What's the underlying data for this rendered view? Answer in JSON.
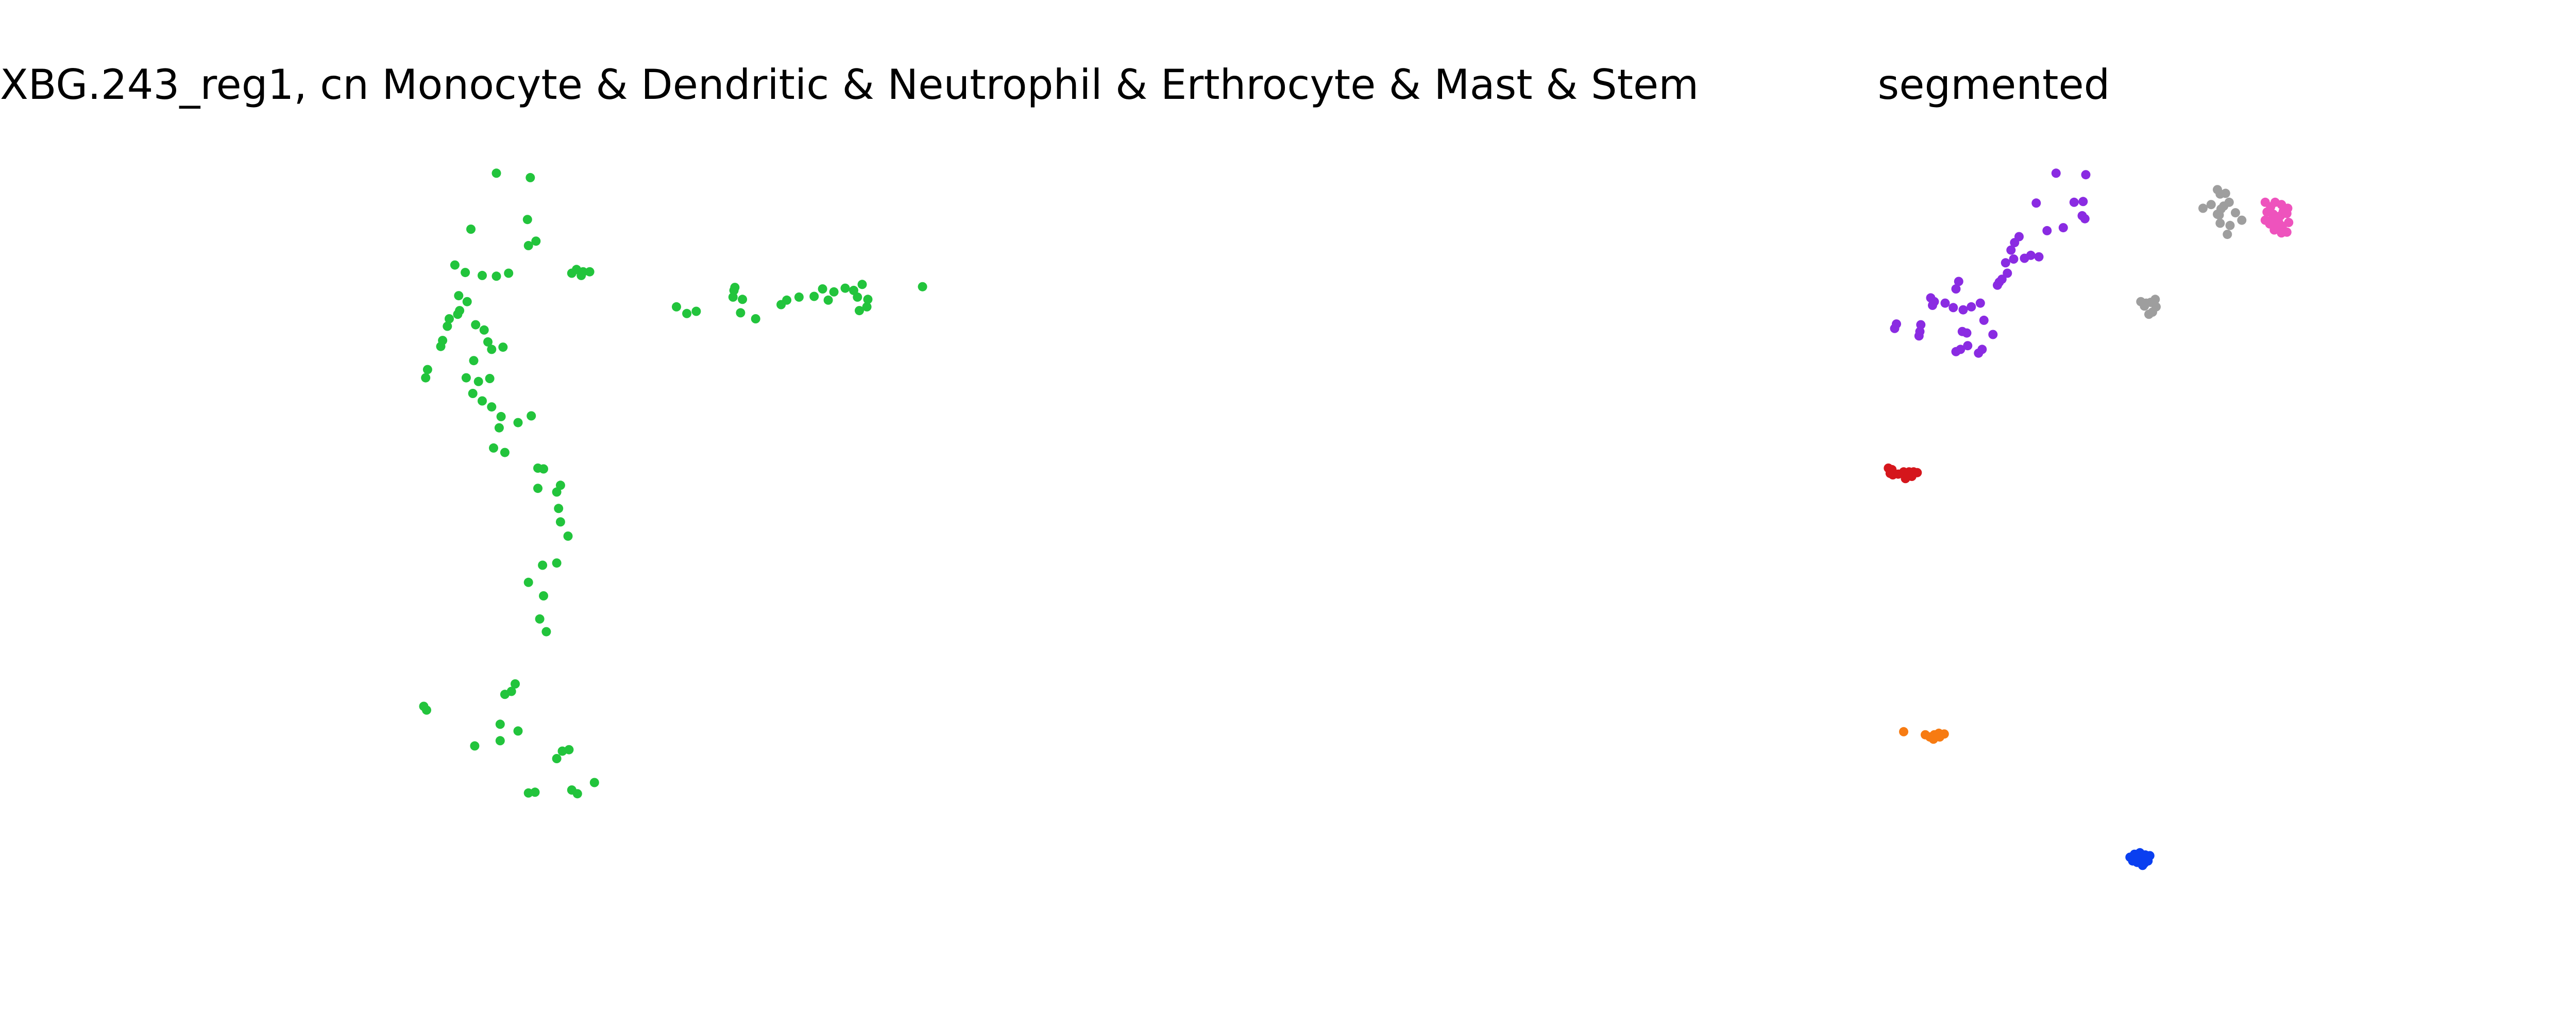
{
  "figure": {
    "background": "#ffffff"
  },
  "chart_data": [
    {
      "type": "scatter",
      "title": "XBG.243_reg1, cn Monocyte & Dendritic & Neutrophil & Erthrocyte & Mast & Stem",
      "xlabel": "",
      "ylabel": "",
      "axes_visible": false,
      "grid": false,
      "xlim": [
        0,
        100
      ],
      "ylim": [
        0,
        100
      ],
      "series": [
        {
          "color": "#22c43c",
          "points": [
            [
              21.5,
              97.5
            ],
            [
              25.1,
              96.9
            ],
            [
              18.8,
              90.0
            ],
            [
              24.8,
              91.3
            ],
            [
              25.7,
              88.4
            ],
            [
              24.9,
              87.8
            ],
            [
              30.0,
              84.6
            ],
            [
              30.7,
              84.3
            ],
            [
              31.4,
              84.3
            ],
            [
              29.5,
              84.1
            ],
            [
              30.5,
              83.8
            ],
            [
              17.1,
              85.2
            ],
            [
              18.2,
              84.2
            ],
            [
              20.0,
              83.8
            ],
            [
              21.5,
              83.7
            ],
            [
              22.8,
              84.1
            ],
            [
              17.5,
              81.1
            ],
            [
              18.4,
              80.3
            ],
            [
              17.6,
              79.1
            ],
            [
              17.4,
              78.6
            ],
            [
              16.5,
              78.0
            ],
            [
              16.3,
              77.0
            ],
            [
              15.8,
              75.1
            ],
            [
              15.6,
              74.3
            ],
            [
              14.2,
              71.2
            ],
            [
              14.0,
              70.1
            ],
            [
              19.3,
              77.2
            ],
            [
              20.2,
              76.5
            ],
            [
              20.6,
              74.9
            ],
            [
              21.0,
              73.9
            ],
            [
              22.2,
              74.2
            ],
            [
              19.1,
              72.4
            ],
            [
              18.3,
              70.1
            ],
            [
              19.6,
              69.6
            ],
            [
              20.8,
              70.0
            ],
            [
              19.0,
              68.0
            ],
            [
              20.0,
              67.0
            ],
            [
              21.0,
              66.2
            ],
            [
              22.0,
              64.9
            ],
            [
              21.8,
              63.4
            ],
            [
              25.2,
              65.0
            ],
            [
              23.8,
              64.1
            ],
            [
              22.4,
              60.1
            ],
            [
              21.2,
              60.7
            ],
            [
              25.9,
              58.0
            ],
            [
              26.5,
              57.9
            ],
            [
              25.9,
              55.3
            ],
            [
              28.3,
              55.7
            ],
            [
              27.9,
              54.8
            ],
            [
              28.1,
              52.6
            ],
            [
              28.3,
              50.8
            ],
            [
              29.1,
              48.9
            ],
            [
              26.4,
              45.0
            ],
            [
              27.9,
              45.3
            ],
            [
              24.9,
              42.7
            ],
            [
              26.1,
              37.8
            ],
            [
              26.5,
              40.9
            ],
            [
              26.8,
              36.1
            ],
            [
              23.5,
              29.1
            ],
            [
              23.1,
              28.1
            ],
            [
              22.4,
              27.7
            ],
            [
              19.2,
              20.8
            ],
            [
              21.9,
              21.5
            ],
            [
              28.5,
              20.1
            ],
            [
              29.2,
              20.3
            ],
            [
              27.9,
              19.1
            ],
            [
              31.9,
              15.9
            ],
            [
              29.5,
              14.9
            ],
            [
              30.1,
              14.4
            ],
            [
              24.9,
              14.5
            ],
            [
              25.6,
              14.6
            ],
            [
              13.8,
              26.1
            ],
            [
              14.1,
              25.6
            ],
            [
              21.9,
              23.7
            ],
            [
              23.8,
              22.8
            ],
            [
              46.8,
              82.2
            ],
            [
              46.7,
              81.8
            ],
            [
              47.6,
              80.6
            ],
            [
              46.6,
              80.9
            ],
            [
              47.4,
              78.8
            ],
            [
              40.6,
              79.6
            ],
            [
              41.7,
              78.7
            ],
            [
              42.7,
              79.0
            ],
            [
              49.0,
              78.0
            ],
            [
              51.7,
              79.9
            ],
            [
              52.3,
              80.5
            ],
            [
              53.6,
              80.9
            ],
            [
              55.2,
              81.0
            ],
            [
              56.1,
              82.0
            ],
            [
              56.7,
              80.5
            ],
            [
              57.3,
              81.6
            ],
            [
              58.5,
              82.1
            ],
            [
              59.4,
              81.8
            ],
            [
              60.3,
              82.6
            ],
            [
              60.9,
              80.6
            ],
            [
              60.0,
              79.1
            ],
            [
              59.8,
              80.9
            ],
            [
              60.8,
              79.6
            ],
            [
              66.7,
              82.3
            ]
          ]
        }
      ]
    },
    {
      "type": "scatter",
      "title": "segmented",
      "xlabel": "",
      "ylabel": "",
      "axes_visible": false,
      "grid": false,
      "xlim": [
        0,
        100
      ],
      "ylim": [
        0,
        100
      ],
      "series": [
        {
          "color": "#8a2be2",
          "points": [
            [
              70.9,
              97.5
            ],
            [
              74.2,
              97.3
            ],
            [
              68.7,
              93.5
            ],
            [
              72.9,
              93.6
            ],
            [
              73.9,
              93.7
            ],
            [
              73.8,
              91.8
            ],
            [
              74.1,
              91.4
            ],
            [
              71.7,
              90.2
            ],
            [
              69.9,
              89.8
            ],
            [
              66.8,
              89.0
            ],
            [
              66.3,
              88.2
            ],
            [
              65.9,
              87.2
            ],
            [
              66.2,
              86.0
            ],
            [
              65.3,
              85.5
            ],
            [
              67.4,
              86.1
            ],
            [
              68.1,
              86.5
            ],
            [
              69.0,
              86.3
            ],
            [
              65.5,
              84.1
            ],
            [
              64.9,
              83.3
            ],
            [
              64.6,
              82.9
            ],
            [
              64.4,
              82.5
            ],
            [
              60.1,
              83.0
            ],
            [
              59.8,
              82.0
            ],
            [
              58.6,
              80.1
            ],
            [
              59.5,
              79.5
            ],
            [
              60.6,
              79.2
            ],
            [
              61.5,
              79.6
            ],
            [
              62.5,
              80.1
            ],
            [
              62.9,
              77.8
            ],
            [
              60.5,
              76.3
            ],
            [
              61.0,
              76.1
            ],
            [
              63.9,
              75.9
            ],
            [
              62.7,
              73.9
            ],
            [
              62.3,
              73.4
            ],
            [
              61.1,
              74.4
            ],
            [
              60.3,
              73.9
            ],
            [
              59.8,
              73.6
            ],
            [
              57.4,
              80.3
            ],
            [
              57.0,
              80.8
            ],
            [
              57.2,
              79.8
            ],
            [
              55.8,
              76.3
            ],
            [
              55.7,
              75.7
            ],
            [
              55.9,
              77.2
            ],
            [
              53.2,
              77.3
            ],
            [
              53.0,
              76.7
            ]
          ]
        },
        {
          "color": "#9e9e9e",
          "points": [
            [
              88.8,
              95.3
            ],
            [
              89.1,
              94.7
            ],
            [
              89.7,
              94.8
            ],
            [
              90.1,
              93.6
            ],
            [
              89.5,
              93.1
            ],
            [
              89.2,
              92.7
            ],
            [
              88.8,
              92.0
            ],
            [
              89.1,
              90.8
            ],
            [
              90.2,
              90.5
            ],
            [
              91.5,
              91.2
            ],
            [
              90.8,
              92.2
            ],
            [
              89.9,
              89.3
            ],
            [
              87.2,
              92.8
            ],
            [
              88.1,
              93.3
            ],
            [
              89.0,
              91.9
            ],
            [
              80.3,
              80.3
            ],
            [
              80.9,
              80.1
            ],
            [
              81.4,
              80.2
            ],
            [
              82.0,
              79.6
            ],
            [
              81.6,
              78.9
            ],
            [
              81.2,
              78.6
            ],
            [
              80.7,
              79.7
            ],
            [
              81.9,
              80.6
            ]
          ]
        },
        {
          "color": "#ee53bd",
          "points": [
            [
              94.1,
              93.6
            ],
            [
              94.7,
              93.0
            ],
            [
              95.2,
              93.6
            ],
            [
              95.9,
              93.3
            ],
            [
              96.6,
              92.8
            ],
            [
              94.3,
              92.3
            ],
            [
              95.0,
              92.0
            ],
            [
              95.8,
              91.8
            ],
            [
              96.5,
              92.1
            ],
            [
              94.1,
              91.2
            ],
            [
              94.6,
              90.7
            ],
            [
              95.4,
              90.8
            ],
            [
              96.0,
              90.4
            ],
            [
              96.7,
              90.9
            ],
            [
              95.1,
              89.9
            ],
            [
              95.9,
              89.5
            ],
            [
              96.5,
              89.6
            ],
            [
              94.9,
              91.4
            ],
            [
              96.1,
              92.4
            ],
            [
              95.6,
              90.9
            ]
          ]
        },
        {
          "color": "#d5161c",
          "points": [
            [
              52.3,
              58.0
            ],
            [
              52.5,
              57.3
            ],
            [
              52.8,
              57.1
            ],
            [
              52.7,
              57.8
            ],
            [
              53.4,
              57.2
            ],
            [
              54.0,
              57.5
            ],
            [
              54.6,
              57.5
            ],
            [
              55.1,
              57.5
            ],
            [
              55.5,
              57.4
            ],
            [
              54.2,
              56.6
            ],
            [
              54.9,
              56.9
            ]
          ]
        },
        {
          "color": "#f77b12",
          "points": [
            [
              54.0,
              22.7
            ],
            [
              56.4,
              22.3
            ],
            [
              56.9,
              22.0
            ],
            [
              57.4,
              22.3
            ],
            [
              57.9,
              22.5
            ],
            [
              58.5,
              22.4
            ],
            [
              58.0,
              22.0
            ],
            [
              57.3,
              21.7
            ]
          ]
        },
        {
          "color": "#0a3ff0",
          "points": [
            [
              79.1,
              5.9
            ],
            [
              79.6,
              6.3
            ],
            [
              80.2,
              6.5
            ],
            [
              80.8,
              6.2
            ],
            [
              81.3,
              6.1
            ],
            [
              80.5,
              5.7
            ],
            [
              79.9,
              5.2
            ],
            [
              80.5,
              4.8
            ],
            [
              81.1,
              5.4
            ],
            [
              79.4,
              5.4
            ],
            [
              80.0,
              6.0
            ],
            [
              80.7,
              5.1
            ],
            [
              80.9,
              5.8
            ]
          ]
        }
      ]
    }
  ]
}
